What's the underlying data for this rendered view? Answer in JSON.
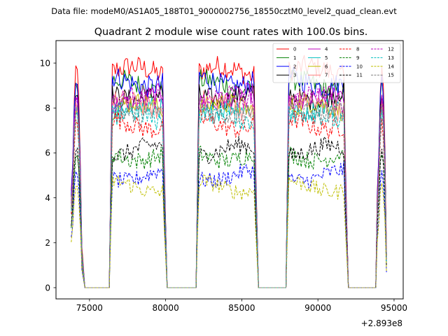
{
  "chart_data": {
    "type": "line",
    "suptitle": "Data file: modeM0/AS1A05_188T01_9000002756_18550cztM0_level2_quad_clean.evt",
    "title": "Quadrant 2 module wise count rates with 100.0s bins.",
    "xlabel": "",
    "ylabel": "",
    "x_offset_label": "+2.893e8",
    "xlim": [
      72800,
      95600
    ],
    "ylim": [
      -0.5,
      11.0
    ],
    "x_ticks": [
      75000,
      80000,
      85000,
      90000,
      95000
    ],
    "x_tick_labels": [
      "75000",
      "80000",
      "85000",
      "90000",
      "95000"
    ],
    "y_ticks": [
      0,
      2,
      4,
      6,
      8,
      10
    ],
    "y_tick_labels": [
      "0",
      "2",
      "4",
      "6",
      "8",
      "10"
    ],
    "grid": false,
    "legend_position": "top-right",
    "legend_columns": 4,
    "segments": [
      {
        "start": 73800,
        "end": 74500,
        "shape": "spike"
      },
      {
        "start": 76400,
        "end": 79900,
        "shape": "plateau"
      },
      {
        "start": 82100,
        "end": 85900,
        "shape": "plateau"
      },
      {
        "start": 88000,
        "end": 91800,
        "shape": "plateau"
      },
      {
        "start": 93900,
        "end": 94500,
        "shape": "spike"
      }
    ],
    "gaps": [
      [
        74700,
        76300
      ],
      [
        80100,
        82000
      ],
      [
        86100,
        87900
      ],
      [
        92000,
        93800
      ]
    ],
    "series": [
      {
        "name": "0",
        "color": "#ff0000",
        "dash": "solid",
        "level": 9.6
      },
      {
        "name": "1",
        "color": "#008000",
        "dash": "solid",
        "level": 9.0
      },
      {
        "name": "2",
        "color": "#0000ff",
        "dash": "solid",
        "level": 9.2
      },
      {
        "name": "3",
        "color": "#000000",
        "dash": "solid",
        "level": 8.6
      },
      {
        "name": "4",
        "color": "#bf00bf",
        "dash": "solid",
        "level": 8.4
      },
      {
        "name": "5",
        "color": "#00bfbf",
        "dash": "solid",
        "level": 7.8
      },
      {
        "name": "6",
        "color": "#bfbf00",
        "dash": "solid",
        "level": 8.0
      },
      {
        "name": "7",
        "color": "#ff8080",
        "dash": "solid",
        "level": 8.1
      },
      {
        "name": "8",
        "color": "#ff0000",
        "dash": "dashed",
        "level": 7.3
      },
      {
        "name": "9",
        "color": "#008000",
        "dash": "dashed",
        "level": 5.9
      },
      {
        "name": "10",
        "color": "#0000ff",
        "dash": "dashed",
        "level": 5.0
      },
      {
        "name": "11",
        "color": "#000000",
        "dash": "dashed",
        "level": 6.1
      },
      {
        "name": "12",
        "color": "#bf00bf",
        "dash": "dashed",
        "level": 8.3
      },
      {
        "name": "13",
        "color": "#00bfbf",
        "dash": "dashed",
        "level": 7.6
      },
      {
        "name": "14",
        "color": "#bfbf00",
        "dash": "dashed",
        "level": 4.5
      },
      {
        "name": "15",
        "color": "#808080",
        "dash": "dashed",
        "level": 7.9
      }
    ]
  }
}
